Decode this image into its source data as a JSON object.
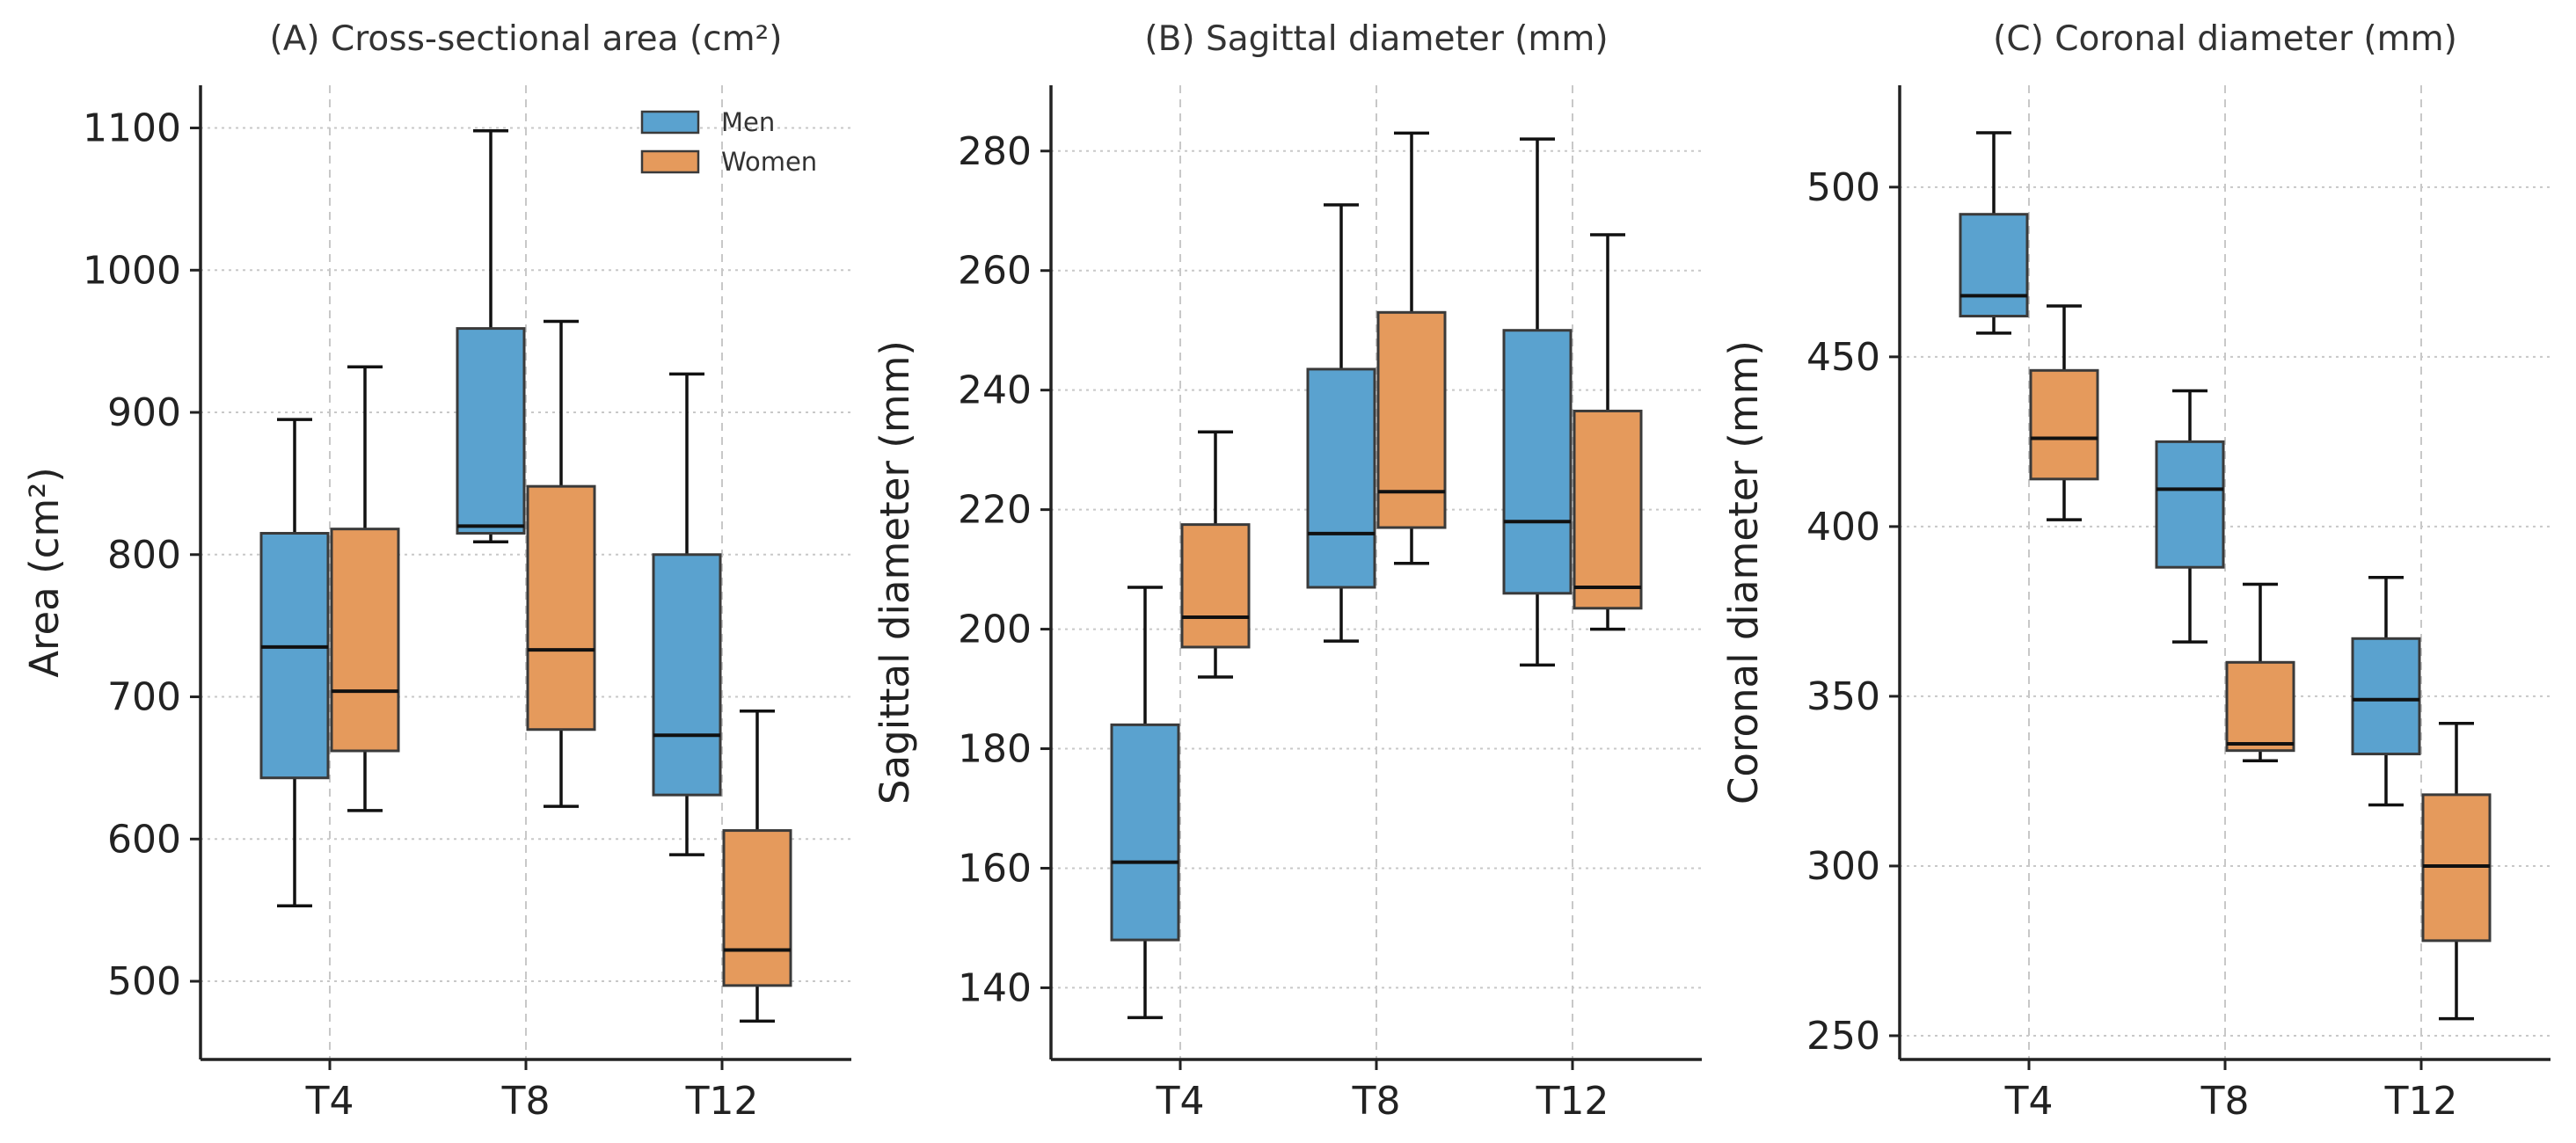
{
  "chart_data": [
    {
      "type": "box",
      "title": "(A) Cross-sectional area (cm²)",
      "xlabel": "",
      "ylabel": "Area (cm²)",
      "categories": [
        "T4",
        "T8",
        "T12"
      ],
      "ylim": [
        445,
        1130
      ],
      "yticks": [
        500,
        600,
        700,
        800,
        900,
        1000,
        1100
      ],
      "grid": true,
      "legend": {
        "placement": "top-right",
        "entries": [
          "Men",
          "Women"
        ]
      },
      "series": [
        {
          "name": "Men",
          "color": "#5aa2cf",
          "boxes": [
            {
              "whislo": 553,
              "q1": 643,
              "med": 735,
              "q3": 815,
              "whishi": 895
            },
            {
              "whislo": 809,
              "q1": 815,
              "med": 820,
              "q3": 959,
              "whishi": 1098
            },
            {
              "whislo": 589,
              "q1": 631,
              "med": 673,
              "q3": 800,
              "whishi": 927
            }
          ]
        },
        {
          "name": "Women",
          "color": "#e59a5c",
          "boxes": [
            {
              "whislo": 620,
              "q1": 662,
              "med": 704,
              "q3": 818,
              "whishi": 932
            },
            {
              "whislo": 623,
              "q1": 677,
              "med": 733,
              "q3": 848,
              "whishi": 964
            },
            {
              "whislo": 472,
              "q1": 497,
              "med": 522,
              "q3": 606,
              "whishi": 690
            }
          ]
        }
      ]
    },
    {
      "type": "box",
      "title": "(B) Sagittal diameter (mm)",
      "xlabel": "",
      "ylabel": "Sagittal diameter (mm)",
      "categories": [
        "T4",
        "T8",
        "T12"
      ],
      "ylim": [
        128,
        291
      ],
      "yticks": [
        140,
        160,
        180,
        200,
        220,
        240,
        260,
        280
      ],
      "grid": true,
      "series": [
        {
          "name": "Men",
          "color": "#5aa2cf",
          "boxes": [
            {
              "whislo": 135,
              "q1": 148,
              "med": 161,
              "q3": 184,
              "whishi": 207
            },
            {
              "whislo": 198,
              "q1": 207,
              "med": 216,
              "q3": 243.5,
              "whishi": 271
            },
            {
              "whislo": 194,
              "q1": 206,
              "med": 218,
              "q3": 250,
              "whishi": 282
            }
          ]
        },
        {
          "name": "Women",
          "color": "#e59a5c",
          "boxes": [
            {
              "whislo": 192,
              "q1": 197,
              "med": 202,
              "q3": 217.5,
              "whishi": 233
            },
            {
              "whislo": 211,
              "q1": 217,
              "med": 223,
              "q3": 253,
              "whishi": 283
            },
            {
              "whislo": 200,
              "q1": 203.5,
              "med": 207,
              "q3": 236.5,
              "whishi": 266
            }
          ]
        }
      ]
    },
    {
      "type": "box",
      "title": "(C) Coronal diameter (mm)",
      "xlabel": "",
      "ylabel": "Coronal diameter (mm)",
      "categories": [
        "T4",
        "T8",
        "T12"
      ],
      "ylim": [
        243,
        530
      ],
      "yticks": [
        250,
        300,
        350,
        400,
        450,
        500
      ],
      "grid": true,
      "series": [
        {
          "name": "Men",
          "color": "#5aa2cf",
          "boxes": [
            {
              "whislo": 457,
              "q1": 462,
              "med": 468,
              "q3": 492,
              "whishi": 516
            },
            {
              "whislo": 366,
              "q1": 388,
              "med": 411,
              "q3": 425,
              "whishi": 440
            },
            {
              "whislo": 318,
              "q1": 333,
              "med": 349,
              "q3": 367,
              "whishi": 385
            }
          ]
        },
        {
          "name": "Women",
          "color": "#e59a5c",
          "boxes": [
            {
              "whislo": 402,
              "q1": 414,
              "med": 426,
              "q3": 446,
              "whishi": 465
            },
            {
              "whislo": 331,
              "q1": 334,
              "med": 336,
              "q3": 360,
              "whishi": 383
            },
            {
              "whislo": 255,
              "q1": 278,
              "med": 300,
              "q3": 321,
              "whishi": 342
            }
          ]
        }
      ]
    }
  ]
}
